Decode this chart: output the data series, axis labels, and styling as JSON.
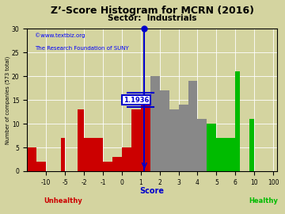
{
  "title": "Z’-Score Histogram for MCRN (2016)",
  "subtitle": "Sector:  Industrials",
  "xlabel": "Score",
  "ylabel": "Number of companies (573 total)",
  "watermark1": "©www.textbiz.org",
  "watermark2": "The Research Foundation of SUNY",
  "marker_value": 1.1936,
  "marker_label": "1.1936",
  "bg_color": "#d4d4a0",
  "red": "#cc0000",
  "gray": "#888888",
  "green": "#00bb00",
  "blue": "#0000cc",
  "bars": [
    [
      -12.0,
      -11.0,
      5,
      "red"
    ],
    [
      -11.0,
      -10.0,
      2,
      "red"
    ],
    [
      -6.0,
      -5.0,
      7,
      "red"
    ],
    [
      -3.0,
      -2.0,
      13,
      "red"
    ],
    [
      -2.0,
      -1.0,
      7,
      "red"
    ],
    [
      -1.0,
      -0.5,
      2,
      "red"
    ],
    [
      -0.5,
      0.0,
      3,
      "red"
    ],
    [
      0.0,
      0.5,
      5,
      "red"
    ],
    [
      0.5,
      1.0,
      13,
      "red"
    ],
    [
      1.0,
      1.5,
      14,
      "red"
    ],
    [
      1.5,
      2.0,
      20,
      "gray"
    ],
    [
      2.0,
      2.5,
      17,
      "gray"
    ],
    [
      2.5,
      3.0,
      13,
      "gray"
    ],
    [
      3.0,
      3.5,
      14,
      "gray"
    ],
    [
      3.5,
      4.0,
      19,
      "gray"
    ],
    [
      4.0,
      4.5,
      11,
      "gray"
    ],
    [
      4.5,
      5.0,
      10,
      "green"
    ],
    [
      5.0,
      5.5,
      7,
      "green"
    ],
    [
      5.5,
      6.0,
      7,
      "green"
    ],
    [
      6.0,
      7.0,
      21,
      "green"
    ],
    [
      9.0,
      11.0,
      11,
      "green"
    ],
    [
      99.0,
      101.0,
      0,
      "green"
    ]
  ],
  "xtick_display_pos": [
    -10,
    -5,
    -2,
    -1,
    0,
    1,
    2,
    3,
    4,
    5,
    6,
    10,
    100
  ],
  "xtick_labels": [
    "-10",
    "-5",
    "-2",
    "-1",
    "0",
    "1",
    "2",
    "3",
    "4",
    "5",
    "6",
    "10",
    "100"
  ],
  "ytick_pos": [
    0,
    5,
    10,
    15,
    20,
    25,
    30
  ],
  "ylim": [
    0,
    30
  ]
}
